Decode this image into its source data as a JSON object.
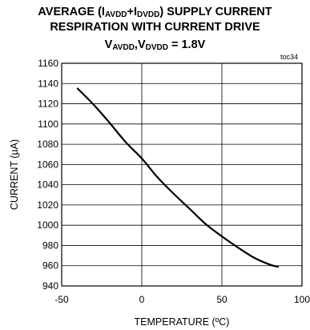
{
  "title": {
    "line1_a": "AVERAGE (I",
    "line1_sub1": "AVDD",
    "line1_b": "+I",
    "line1_sub2": "DVDD",
    "line1_c": ") SUPPLY CURRENT",
    "line2": "RESPIRATION WITH CURRENT DRIVE",
    "line3_a": "V",
    "line3_sub1": "AVDD",
    "line3_b": ",V",
    "line3_sub2": "DVDD",
    "line3_c": " = 1.8V"
  },
  "toc": "toc34",
  "chart_data": {
    "type": "line",
    "xlabel": "TEMPERATURE (ºC)",
    "ylabel": "CURRENT (µA)",
    "xlim": [
      -50,
      100
    ],
    "ylim": [
      940,
      1160
    ],
    "xticks": [
      -50,
      0,
      50,
      100
    ],
    "yticks": [
      940,
      960,
      980,
      1000,
      1020,
      1040,
      1060,
      1080,
      1100,
      1120,
      1140,
      1160
    ],
    "grid": true,
    "series": [
      {
        "x": [
          -40,
          -30,
          -20,
          -10,
          0,
          10,
          20,
          30,
          40,
          50,
          60,
          70,
          80,
          85
        ],
        "y": [
          1135,
          1119,
          1101,
          1082,
          1066,
          1047,
          1031,
          1016,
          1001,
          989,
          978,
          968,
          961,
          959
        ]
      }
    ]
  }
}
